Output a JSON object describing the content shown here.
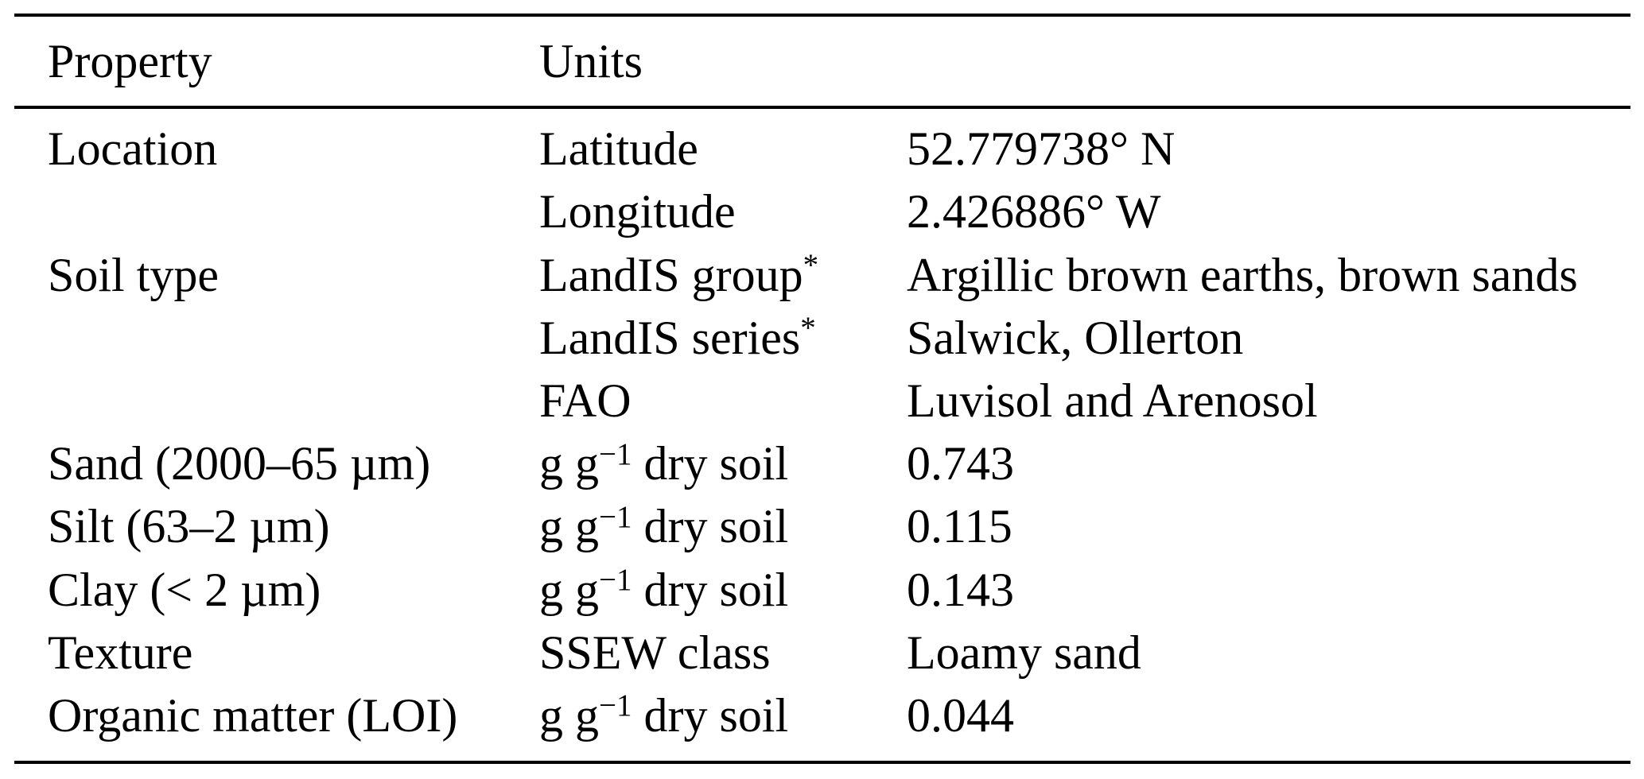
{
  "page": {
    "background_color": "#ffffff",
    "text_color": "#000000",
    "rule_color": "#000000"
  },
  "table": {
    "header": {
      "property": "Property",
      "units": "Units"
    },
    "rows": [
      {
        "property": "Location",
        "units_base": "Latitude",
        "units_sup": "",
        "units_rest": "",
        "value": "52.779738° N"
      },
      {
        "property": "",
        "units_base": "Longitude",
        "units_sup": "",
        "units_rest": "",
        "value": "2.426886° W"
      },
      {
        "property": "Soil type",
        "units_base": "LandIS group",
        "units_sup": "*",
        "units_rest": "",
        "value": "Argillic brown earths, brown sands"
      },
      {
        "property": "",
        "units_base": "LandIS series",
        "units_sup": "*",
        "units_rest": "",
        "value": "Salwick, Ollerton"
      },
      {
        "property": "",
        "units_base": "FAO",
        "units_sup": "",
        "units_rest": "",
        "value": "Luvisol and Arenosol"
      },
      {
        "property": "Sand (2000–65 µm)",
        "units_base": "g g",
        "units_sup": "−1",
        "units_rest": " dry soil",
        "value": "0.743"
      },
      {
        "property": "Silt (63–2 µm)",
        "units_base": "g g",
        "units_sup": "−1",
        "units_rest": " dry soil",
        "value": "0.115"
      },
      {
        "property": "Clay (< 2 µm)",
        "units_base": "g g",
        "units_sup": "−1",
        "units_rest": " dry soil",
        "value": "0.143"
      },
      {
        "property": "Texture",
        "units_base": "SSEW class",
        "units_sup": "",
        "units_rest": "",
        "value": "Loamy sand"
      },
      {
        "property": "Organic matter (LOI)",
        "units_base": "g g",
        "units_sup": "−1",
        "units_rest": " dry soil",
        "value": "0.044"
      }
    ]
  }
}
